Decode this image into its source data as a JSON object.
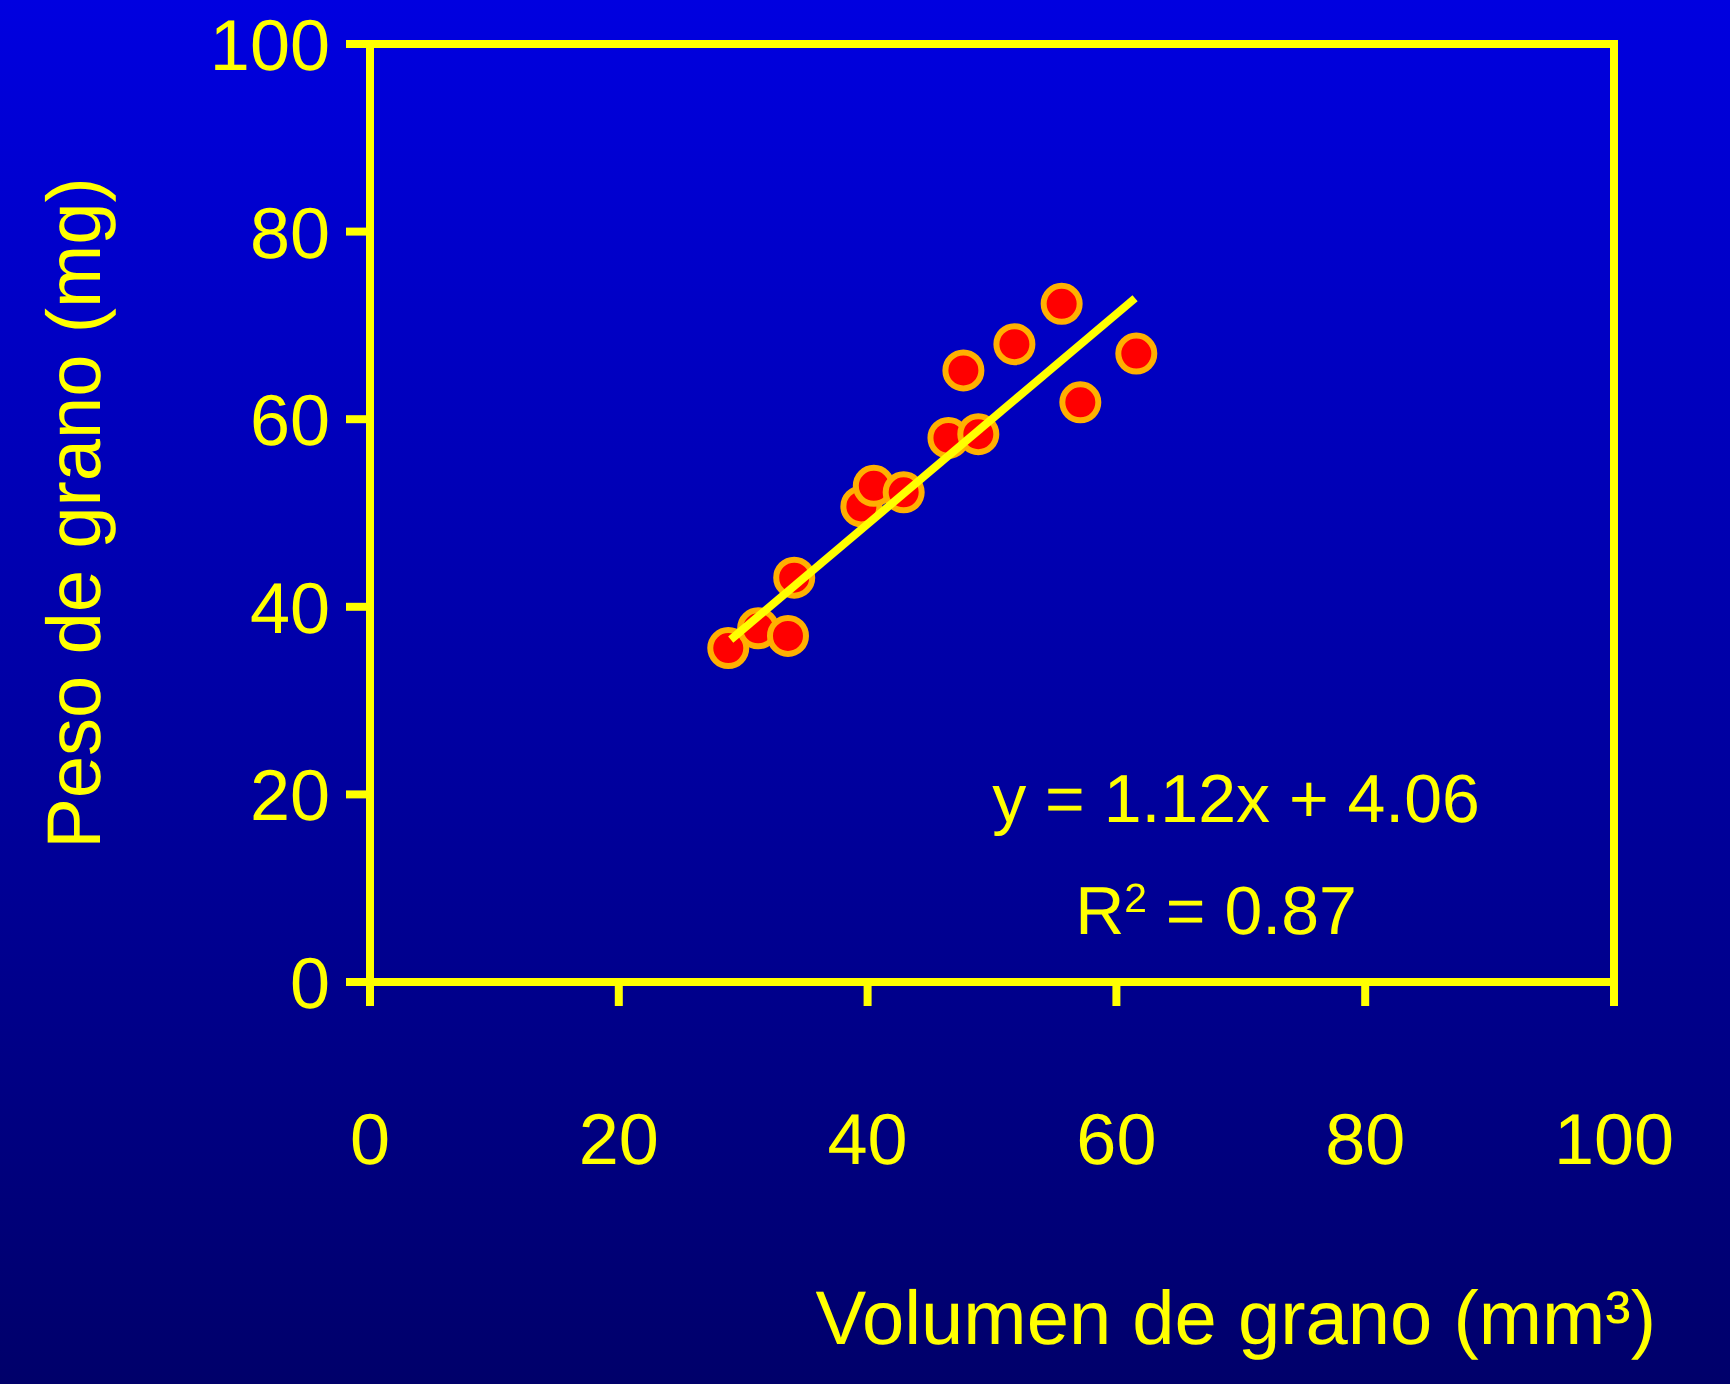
{
  "chart_data": {
    "type": "scatter",
    "xlabel": "Volumen de grano (mm³)",
    "ylabel": "Peso de grano (mg)",
    "xlim": [
      0,
      100
    ],
    "ylim": [
      0,
      100
    ],
    "xticks": [
      0,
      20,
      40,
      60,
      80,
      100
    ],
    "yticks": [
      0,
      20,
      40,
      60,
      80,
      100
    ],
    "grid": false,
    "marker": "circle",
    "annotations": [
      "y = 1.12x + 4.06",
      "R$^{2}$ = 0.87"
    ],
    "series": [
      {
        "color": "#ff0000",
        "x": [
          28.8,
          31.2,
          33.6,
          34.1,
          39.5,
          40.5,
          42.9,
          46.5,
          48.9,
          47.7,
          51.8,
          55.6,
          57.1,
          61.6
        ],
        "values": [
          35.6,
          37.7,
          36.9,
          43.1,
          50.7,
          52.9,
          52.2,
          58.0,
          58.4,
          65.2,
          68.0,
          72.3,
          61.8,
          67.0
        ]
      },
      {
        "type": "line",
        "color": "#ffff00",
        "x": [
          29,
          61.5
        ],
        "values": [
          36.5,
          72.9
        ],
        "marker": "none"
      }
    ]
  }
}
